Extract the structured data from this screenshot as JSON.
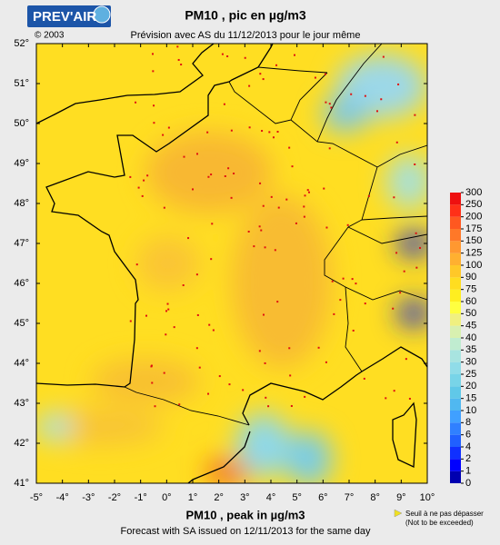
{
  "header": {
    "logo": "PREV'AIR",
    "copyright": "© 2003",
    "title": "PM10 , pic en µg/m3",
    "subtitle": "Prévision avec AS du 11/12/2013 pour le jour même"
  },
  "map": {
    "xlim": [
      -5,
      10
    ],
    "ylim": [
      41,
      52
    ],
    "xticks": [
      {
        "value": -5,
        "label": "-5°"
      },
      {
        "value": -4,
        "label": "-4°"
      },
      {
        "value": -3,
        "label": "-3°"
      },
      {
        "value": -2,
        "label": "-2°"
      },
      {
        "value": -1,
        "label": "-1°"
      },
      {
        "value": 0,
        "label": "0°"
      },
      {
        "value": 1,
        "label": "1°"
      },
      {
        "value": 2,
        "label": "2°"
      },
      {
        "value": 3,
        "label": "3°"
      },
      {
        "value": 4,
        "label": "4°"
      },
      {
        "value": 5,
        "label": "5°"
      },
      {
        "value": 6,
        "label": "6°"
      },
      {
        "value": 7,
        "label": "7°"
      },
      {
        "value": 8,
        "label": "8°"
      },
      {
        "value": 9,
        "label": "9°"
      },
      {
        "value": 10,
        "label": "10°"
      }
    ],
    "yticks": [
      {
        "value": 41,
        "label": "41°"
      },
      {
        "value": 42,
        "label": "42°"
      },
      {
        "value": 43,
        "label": "43°"
      },
      {
        "value": 44,
        "label": "44°"
      },
      {
        "value": 45,
        "label": "45°"
      },
      {
        "value": 46,
        "label": "46°"
      },
      {
        "value": 47,
        "label": "47°"
      },
      {
        "value": 48,
        "label": "48°"
      },
      {
        "value": 49,
        "label": "49°"
      },
      {
        "value": 50,
        "label": "50°"
      },
      {
        "value": 51,
        "label": "51°"
      },
      {
        "value": 52,
        "label": "52°"
      }
    ]
  },
  "colorbar": {
    "levels": [
      0,
      1,
      2,
      4,
      6,
      8,
      10,
      15,
      20,
      25,
      30,
      35,
      40,
      45,
      50,
      60,
      75,
      90,
      100,
      125,
      150,
      175,
      200,
      250,
      300
    ],
    "colors": [
      "#0000b0",
      "#0000ff",
      "#1030ff",
      "#2060ff",
      "#3080ff",
      "#40a0ff",
      "#50b8f0",
      "#60c8e8",
      "#78d4e8",
      "#90dce8",
      "#a8e4e0",
      "#c0ecd0",
      "#d8f0b0",
      "#f0f080",
      "#ffff40",
      "#ffee20",
      "#ffdd20",
      "#ffc828",
      "#ffb030",
      "#ff9830",
      "#ff7828",
      "#ff5820",
      "#ff3018",
      "#ee1010"
    ]
  },
  "footer": {
    "title": "PM10 , peak in µg/m3",
    "subtitle": "Forecast with SA issued on 12/11/2013 for the same day"
  },
  "note": {
    "line1": "Seuil à ne pas dépasser",
    "line2": "(Not to be exceeded)"
  }
}
